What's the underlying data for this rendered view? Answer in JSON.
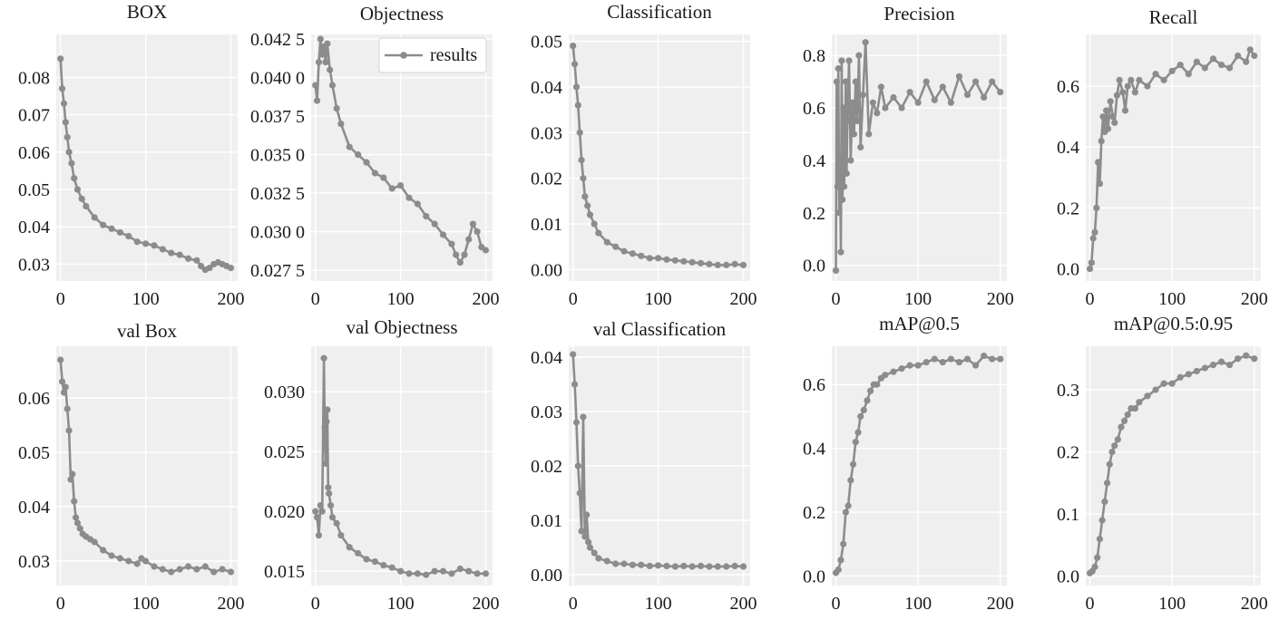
{
  "legend": {
    "label": "results"
  },
  "series_color": "#8c8c8c",
  "chart_data": [
    {
      "type": "line",
      "title": "BOX",
      "xlim": [
        -5,
        208
      ],
      "ylim": [
        0.0255,
        0.0915
      ],
      "xticks": [
        0,
        100,
        200
      ],
      "xtick_labels": [
        "0",
        "100",
        "200"
      ],
      "yticks": [
        0.03,
        0.04,
        0.05,
        0.06,
        0.07,
        0.08
      ],
      "ytick_labels": [
        "0.03",
        "0.04",
        "0.05",
        "0.06",
        "0.07",
        "0.08"
      ],
      "x": [
        0,
        2,
        4,
        6,
        8,
        10,
        13,
        16,
        20,
        25,
        30,
        40,
        50,
        60,
        70,
        80,
        90,
        100,
        110,
        120,
        130,
        140,
        150,
        160,
        165,
        170,
        175,
        180,
        185,
        190,
        195,
        200
      ],
      "y": [
        0.085,
        0.077,
        0.073,
        0.068,
        0.064,
        0.06,
        0.057,
        0.053,
        0.05,
        0.0475,
        0.0455,
        0.0425,
        0.0405,
        0.0395,
        0.0385,
        0.0375,
        0.036,
        0.0355,
        0.035,
        0.034,
        0.033,
        0.0325,
        0.0315,
        0.031,
        0.0295,
        0.0285,
        0.029,
        0.03,
        0.0305,
        0.03,
        0.0295,
        0.029
      ]
    },
    {
      "type": "line",
      "title": "Objectness",
      "xlim": [
        -5,
        208
      ],
      "ylim": [
        0.0268,
        0.0428
      ],
      "xticks": [
        0,
        100,
        200
      ],
      "xtick_labels": [
        "0",
        "100",
        "200"
      ],
      "yticks": [
        0.0275,
        0.03,
        0.0325,
        0.035,
        0.0375,
        0.04,
        0.0425
      ],
      "ytick_labels": [
        "0.027 5",
        "0.030 0",
        "0.032 5",
        "0.035 0",
        "0.037 5",
        "0.040 0",
        "0.042 5"
      ],
      "x": [
        0,
        2,
        4,
        6,
        8,
        10,
        12,
        14,
        17,
        20,
        25,
        30,
        40,
        50,
        60,
        70,
        80,
        90,
        100,
        110,
        120,
        130,
        140,
        150,
        160,
        165,
        170,
        175,
        180,
        185,
        190,
        195,
        200
      ],
      "y": [
        0.0395,
        0.0385,
        0.041,
        0.0425,
        0.0415,
        0.042,
        0.041,
        0.0422,
        0.0405,
        0.0395,
        0.038,
        0.037,
        0.0355,
        0.035,
        0.0345,
        0.0338,
        0.0335,
        0.0328,
        0.033,
        0.0322,
        0.0318,
        0.031,
        0.0305,
        0.0298,
        0.0292,
        0.0285,
        0.028,
        0.0285,
        0.0295,
        0.0305,
        0.03,
        0.029,
        0.0288
      ]
    },
    {
      "type": "line",
      "title": "Classification",
      "xlim": [
        -5,
        208
      ],
      "ylim": [
        -0.0025,
        0.0515
      ],
      "xticks": [
        0,
        100,
        200
      ],
      "xtick_labels": [
        "0",
        "100",
        "200"
      ],
      "yticks": [
        0,
        0.01,
        0.02,
        0.03,
        0.04,
        0.05
      ],
      "ytick_labels": [
        "0.00",
        "0.01",
        "0.02",
        "0.03",
        "0.04",
        "0.05"
      ],
      "x": [
        0,
        2,
        4,
        6,
        8,
        10,
        12,
        14,
        17,
        20,
        25,
        30,
        40,
        50,
        60,
        70,
        80,
        90,
        100,
        110,
        120,
        130,
        140,
        150,
        160,
        170,
        180,
        190,
        200
      ],
      "y": [
        0.049,
        0.045,
        0.04,
        0.036,
        0.03,
        0.024,
        0.02,
        0.016,
        0.014,
        0.012,
        0.01,
        0.008,
        0.006,
        0.005,
        0.004,
        0.0035,
        0.003,
        0.0025,
        0.0025,
        0.0022,
        0.002,
        0.0018,
        0.0016,
        0.0014,
        0.0012,
        0.001,
        0.001,
        0.0012,
        0.001
      ]
    },
    {
      "type": "line",
      "title": "Precision",
      "xlim": [
        -5,
        208
      ],
      "ylim": [
        -0.06,
        0.88
      ],
      "xticks": [
        0,
        100,
        200
      ],
      "xtick_labels": [
        "0",
        "100",
        "200"
      ],
      "yticks": [
        0,
        0.2,
        0.4,
        0.6,
        0.8
      ],
      "ytick_labels": [
        "0.0",
        "0.2",
        "0.4",
        "0.6",
        "0.8"
      ],
      "x": [
        0,
        1,
        2,
        3,
        4,
        5,
        6,
        7,
        8,
        9,
        10,
        11,
        12,
        13,
        14,
        16,
        18,
        20,
        22,
        24,
        26,
        28,
        30,
        33,
        36,
        40,
        45,
        50,
        55,
        60,
        70,
        80,
        90,
        100,
        110,
        120,
        130,
        140,
        150,
        160,
        170,
        180,
        190,
        200
      ],
      "y": [
        -0.02,
        0.7,
        0.3,
        0.75,
        0.2,
        0.4,
        0.05,
        0.78,
        0.25,
        0.6,
        0.3,
        0.45,
        0.7,
        0.35,
        0.55,
        0.78,
        0.4,
        0.62,
        0.5,
        0.7,
        0.55,
        0.8,
        0.45,
        0.65,
        0.85,
        0.5,
        0.62,
        0.58,
        0.68,
        0.6,
        0.64,
        0.6,
        0.66,
        0.62,
        0.7,
        0.63,
        0.68,
        0.62,
        0.72,
        0.65,
        0.7,
        0.64,
        0.7,
        0.66
      ]
    },
    {
      "type": "line",
      "title": "Recall",
      "xlim": [
        -5,
        208
      ],
      "ylim": [
        -0.04,
        0.77
      ],
      "xticks": [
        0,
        100,
        200
      ],
      "xtick_labels": [
        "0",
        "100",
        "200"
      ],
      "yticks": [
        0,
        0.2,
        0.4,
        0.6
      ],
      "ytick_labels": [
        "0.0",
        "0.2",
        "0.4",
        "0.6"
      ],
      "x": [
        0,
        2,
        4,
        6,
        8,
        10,
        12,
        14,
        16,
        18,
        20,
        22,
        25,
        28,
        30,
        33,
        36,
        40,
        43,
        46,
        50,
        55,
        60,
        70,
        80,
        90,
        100,
        110,
        120,
        130,
        140,
        150,
        160,
        170,
        180,
        190,
        195,
        200
      ],
      "y": [
        0.0,
        0.02,
        0.1,
        0.12,
        0.2,
        0.35,
        0.28,
        0.42,
        0.5,
        0.45,
        0.52,
        0.46,
        0.55,
        0.5,
        0.48,
        0.57,
        0.62,
        0.58,
        0.52,
        0.6,
        0.62,
        0.58,
        0.62,
        0.6,
        0.64,
        0.62,
        0.65,
        0.67,
        0.64,
        0.68,
        0.66,
        0.69,
        0.67,
        0.66,
        0.7,
        0.68,
        0.72,
        0.7
      ]
    },
    {
      "type": "line",
      "title": "val Box",
      "xlim": [
        -5,
        208
      ],
      "ylim": [
        0.0255,
        0.0695
      ],
      "xticks": [
        0,
        100,
        200
      ],
      "xtick_labels": [
        "0",
        "100",
        "200"
      ],
      "yticks": [
        0.03,
        0.04,
        0.05,
        0.06
      ],
      "ytick_labels": [
        "0.03",
        "0.04",
        "0.05",
        "0.06"
      ],
      "x": [
        0,
        2,
        4,
        6,
        8,
        10,
        12,
        14,
        16,
        18,
        20,
        23,
        26,
        30,
        35,
        40,
        50,
        60,
        70,
        80,
        90,
        95,
        100,
        110,
        120,
        130,
        140,
        150,
        160,
        170,
        180,
        190,
        200
      ],
      "y": [
        0.067,
        0.063,
        0.061,
        0.062,
        0.058,
        0.054,
        0.045,
        0.046,
        0.041,
        0.038,
        0.037,
        0.036,
        0.035,
        0.0345,
        0.034,
        0.0335,
        0.032,
        0.031,
        0.0305,
        0.03,
        0.0295,
        0.0305,
        0.03,
        0.029,
        0.0285,
        0.028,
        0.0285,
        0.029,
        0.0285,
        0.029,
        0.028,
        0.0285,
        0.028
      ]
    },
    {
      "type": "line",
      "title": "val Objectness",
      "xlim": [
        -5,
        208
      ],
      "ylim": [
        0.0138,
        0.0338
      ],
      "xticks": [
        0,
        100,
        200
      ],
      "xtick_labels": [
        "0",
        "100",
        "200"
      ],
      "yticks": [
        0.015,
        0.02,
        0.025,
        0.03
      ],
      "ytick_labels": [
        "0.015",
        "0.020",
        "0.025",
        "0.030"
      ],
      "x": [
        0,
        2,
        4,
        6,
        8,
        10,
        11,
        12,
        13,
        14,
        15,
        16,
        18,
        20,
        25,
        30,
        40,
        50,
        60,
        70,
        80,
        90,
        100,
        110,
        120,
        130,
        140,
        150,
        160,
        170,
        180,
        190,
        200
      ],
      "y": [
        0.02,
        0.0195,
        0.018,
        0.0205,
        0.02,
        0.0328,
        0.027,
        0.024,
        0.0275,
        0.0285,
        0.022,
        0.0215,
        0.0205,
        0.0195,
        0.019,
        0.018,
        0.017,
        0.0165,
        0.016,
        0.0158,
        0.0155,
        0.0153,
        0.015,
        0.0148,
        0.0148,
        0.0147,
        0.015,
        0.015,
        0.0148,
        0.0152,
        0.015,
        0.0148,
        0.0148
      ]
    },
    {
      "type": "line",
      "title": "val Classification",
      "xlim": [
        -5,
        208
      ],
      "ylim": [
        -0.002,
        0.042
      ],
      "xticks": [
        0,
        100,
        200
      ],
      "xtick_labels": [
        "0",
        "100",
        "200"
      ],
      "yticks": [
        0,
        0.01,
        0.02,
        0.03,
        0.04
      ],
      "ytick_labels": [
        "0.00",
        "0.01",
        "0.02",
        "0.03",
        "0.04"
      ],
      "x": [
        0,
        2,
        4,
        6,
        8,
        10,
        12,
        14,
        16,
        18,
        20,
        25,
        30,
        40,
        50,
        60,
        70,
        80,
        90,
        100,
        110,
        120,
        130,
        140,
        150,
        160,
        170,
        180,
        190,
        200
      ],
      "y": [
        0.0405,
        0.035,
        0.028,
        0.02,
        0.015,
        0.008,
        0.029,
        0.007,
        0.011,
        0.006,
        0.005,
        0.004,
        0.003,
        0.0025,
        0.002,
        0.002,
        0.0018,
        0.0018,
        0.0016,
        0.0017,
        0.0016,
        0.0015,
        0.0016,
        0.0015,
        0.0016,
        0.0015,
        0.0015,
        0.0015,
        0.0016,
        0.0015
      ]
    },
    {
      "type": "line",
      "title": "mAP@0.5",
      "xlim": [
        -5,
        208
      ],
      "ylim": [
        -0.03,
        0.72
      ],
      "xticks": [
        0,
        100,
        200
      ],
      "xtick_labels": [
        "0",
        "100",
        "200"
      ],
      "yticks": [
        0,
        0.2,
        0.4,
        0.6
      ],
      "ytick_labels": [
        "0.0",
        "0.2",
        "0.4",
        "0.6"
      ],
      "x": [
        0,
        3,
        6,
        9,
        12,
        15,
        18,
        21,
        24,
        27,
        30,
        34,
        38,
        42,
        46,
        50,
        55,
        60,
        70,
        80,
        90,
        100,
        110,
        120,
        130,
        140,
        150,
        160,
        170,
        180,
        190,
        200
      ],
      "y": [
        0.01,
        0.02,
        0.05,
        0.1,
        0.2,
        0.22,
        0.3,
        0.35,
        0.42,
        0.45,
        0.5,
        0.52,
        0.55,
        0.58,
        0.6,
        0.6,
        0.62,
        0.63,
        0.64,
        0.65,
        0.66,
        0.66,
        0.67,
        0.68,
        0.67,
        0.68,
        0.67,
        0.68,
        0.66,
        0.69,
        0.68,
        0.68
      ]
    },
    {
      "type": "line",
      "title": "mAP@0.5:0.95",
      "xlim": [
        -5,
        208
      ],
      "ylim": [
        -0.015,
        0.37
      ],
      "xticks": [
        0,
        100,
        200
      ],
      "xtick_labels": [
        "0",
        "100",
        "200"
      ],
      "yticks": [
        0,
        0.1,
        0.2,
        0.3
      ],
      "ytick_labels": [
        "0.0",
        "0.1",
        "0.2",
        "0.3"
      ],
      "x": [
        0,
        3,
        6,
        9,
        12,
        15,
        18,
        21,
        24,
        27,
        30,
        34,
        38,
        42,
        46,
        50,
        55,
        60,
        70,
        80,
        90,
        100,
        110,
        120,
        130,
        140,
        150,
        160,
        170,
        180,
        190,
        200
      ],
      "y": [
        0.005,
        0.008,
        0.015,
        0.03,
        0.06,
        0.09,
        0.12,
        0.15,
        0.18,
        0.2,
        0.21,
        0.22,
        0.24,
        0.25,
        0.26,
        0.27,
        0.27,
        0.28,
        0.29,
        0.3,
        0.31,
        0.31,
        0.32,
        0.325,
        0.33,
        0.335,
        0.34,
        0.345,
        0.34,
        0.35,
        0.355,
        0.35
      ]
    }
  ]
}
